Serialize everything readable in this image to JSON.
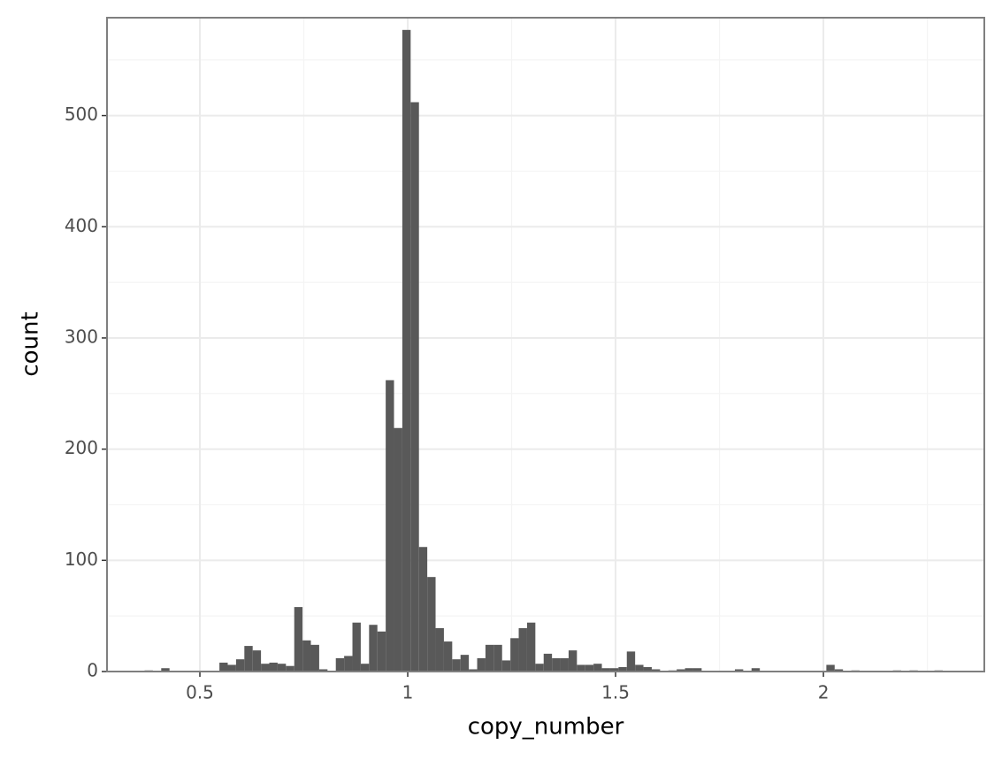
{
  "chart_data": {
    "type": "histogram",
    "x_label": "copy_number",
    "y_label": "count",
    "bins": [
      0.367,
      0.387,
      0.407,
      0.427,
      0.447,
      0.467,
      0.487,
      0.507,
      0.527,
      0.547,
      0.567,
      0.587,
      0.607,
      0.627,
      0.647,
      0.667,
      0.687,
      0.707,
      0.727,
      0.747,
      0.767,
      0.787,
      0.807,
      0.827,
      0.847,
      0.867,
      0.887,
      0.907,
      0.927,
      0.947,
      0.967,
      0.987,
      1.007,
      1.027,
      1.047,
      1.067,
      1.087,
      1.107,
      1.127,
      1.147,
      1.167,
      1.187,
      1.207,
      1.227,
      1.247,
      1.267,
      1.287,
      1.307,
      1.327,
      1.347,
      1.367,
      1.387,
      1.407,
      1.427,
      1.447,
      1.467,
      1.487,
      1.507,
      1.527,
      1.547,
      1.567,
      1.587,
      1.607,
      1.627,
      1.647,
      1.667,
      1.687,
      1.707,
      1.727,
      1.747,
      1.767,
      1.787,
      1.807,
      1.827,
      1.847,
      1.867,
      1.887,
      1.907,
      1.927,
      1.947,
      1.967,
      1.987,
      2.007,
      2.027,
      2.047,
      2.067,
      2.087,
      2.107,
      2.127,
      2.147,
      2.167,
      2.187,
      2.207,
      2.227,
      2.247,
      2.267,
      2.287
    ],
    "values": [
      1,
      0,
      3,
      0,
      0,
      0,
      0,
      0,
      0,
      8,
      6,
      11,
      23,
      19,
      7,
      8,
      7,
      5,
      58,
      28,
      24,
      2,
      0,
      12,
      14,
      44,
      7,
      42,
      36,
      262,
      219,
      577,
      512,
      112,
      85,
      39,
      27,
      11,
      15,
      2,
      12,
      24,
      24,
      10,
      30,
      39,
      44,
      7,
      16,
      12,
      12,
      19,
      6,
      6,
      7,
      3,
      3,
      4,
      18,
      6,
      4,
      2,
      0,
      1,
      2,
      3,
      3,
      0,
      0,
      0,
      0,
      2,
      0,
      3,
      0,
      0,
      0,
      0,
      0,
      0,
      0,
      0,
      6,
      2,
      0,
      1,
      0,
      0,
      0,
      0,
      1,
      0,
      1,
      0,
      0,
      1
    ],
    "color": "#595959",
    "xlim": [
      0.2766,
      2.387
    ],
    "ylim": [
      0,
      588
    ],
    "xticks": [
      0.5,
      1,
      1.5,
      2
    ],
    "yticks": [
      0,
      100,
      200,
      300,
      400,
      500
    ],
    "x_minor_ticks": [
      0.75,
      1.25,
      1.75,
      2.25
    ],
    "y_minor_ticks": [
      50,
      150,
      250,
      350,
      450,
      550
    ],
    "grid": true
  }
}
